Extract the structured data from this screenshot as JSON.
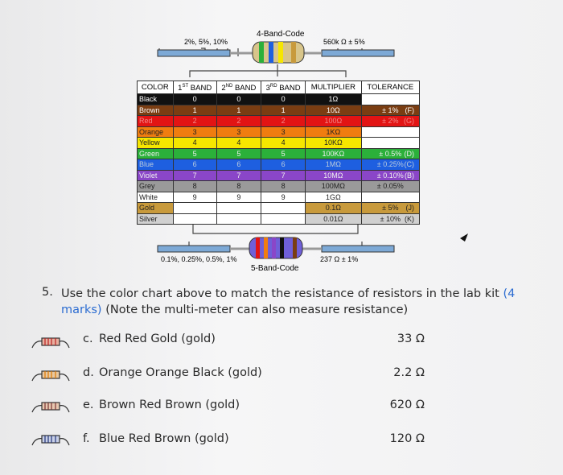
{
  "chart_header": {
    "title": "4-Band-Code",
    "left_note": "2%, 5%, 10%",
    "right_note": "560k Ω  ± 5%"
  },
  "table": {
    "headers": [
      {
        "text": "COLOR"
      },
      {
        "num": "1",
        "sup": "ST",
        "text": "BAND"
      },
      {
        "num": "2",
        "sup": "ND",
        "text": "BAND"
      },
      {
        "num": "3",
        "sup": "RD",
        "text": "BAND"
      },
      {
        "text": "MULTIPLIER"
      },
      {
        "text": "TOLERANCE"
      }
    ],
    "rows": [
      {
        "color": "Black",
        "bands": [
          "0",
          "0",
          "0"
        ],
        "multiplier": "1Ω"
      },
      {
        "color": "Brown",
        "bands": [
          "1",
          "1",
          "1"
        ],
        "multiplier": "10Ω",
        "tolerance": "± 1%",
        "code": "(F)"
      },
      {
        "color": "Red",
        "bands": [
          "2",
          "2",
          "2"
        ],
        "multiplier": "100Ω",
        "tolerance": "± 2%",
        "code": "(G)"
      },
      {
        "color": "Orange",
        "bands": [
          "3",
          "3",
          "3"
        ],
        "multiplier": "1KΩ"
      },
      {
        "color": "Yellow",
        "bands": [
          "4",
          "4",
          "4"
        ],
        "multiplier": "10KΩ"
      },
      {
        "color": "Green",
        "bands": [
          "5",
          "5",
          "5"
        ],
        "multiplier": "100KΩ",
        "tolerance": "± 0.5%",
        "code": "(D)"
      },
      {
        "color": "Blue",
        "bands": [
          "6",
          "6",
          "6"
        ],
        "multiplier": "1MΩ",
        "tolerance": "± 0.25%",
        "code": "(C)"
      },
      {
        "color": "Violet",
        "bands": [
          "7",
          "7",
          "7"
        ],
        "multiplier": "10MΩ",
        "tolerance": "± 0.10%",
        "code": "(B)"
      },
      {
        "color": "Grey",
        "bands": [
          "8",
          "8",
          "8"
        ],
        "multiplier": "100MΩ",
        "tolerance": "± 0.05%"
      },
      {
        "color": "White",
        "bands": [
          "9",
          "9",
          "9"
        ],
        "multiplier": "1GΩ"
      },
      {
        "color": "Gold",
        "multiplier": "0.1Ω",
        "tolerance": "± 5%",
        "code": "(J)"
      },
      {
        "color": "Silver",
        "multiplier": "0.01Ω",
        "tolerance": "± 10%",
        "code": "(K)"
      }
    ]
  },
  "chart_footer": {
    "left_note": "0.1%, 0.25%, 0.5%, 1%",
    "right_note": "237 Ω  ± 1%",
    "title": "5-Band-Code"
  },
  "question": {
    "number": "5.",
    "text_before": "Use the color chart above to match the resistance of resistors in the lab kit ",
    "marks": "(4 marks)",
    "text_after": " (Note the multi-meter can also measure resistance)",
    "items": [
      {
        "letter": "c.",
        "text": "Red Red Gold (gold)",
        "answer": "33 Ω"
      },
      {
        "letter": "d.",
        "text": "Orange Orange Black (gold)",
        "answer": "2.2 Ω"
      },
      {
        "letter": "e.",
        "text": "Brown Red Brown (gold)",
        "answer": "620 Ω"
      },
      {
        "letter": "f.",
        "text": "Blue Red Brown (gold)",
        "answer": "120 Ω"
      }
    ]
  }
}
